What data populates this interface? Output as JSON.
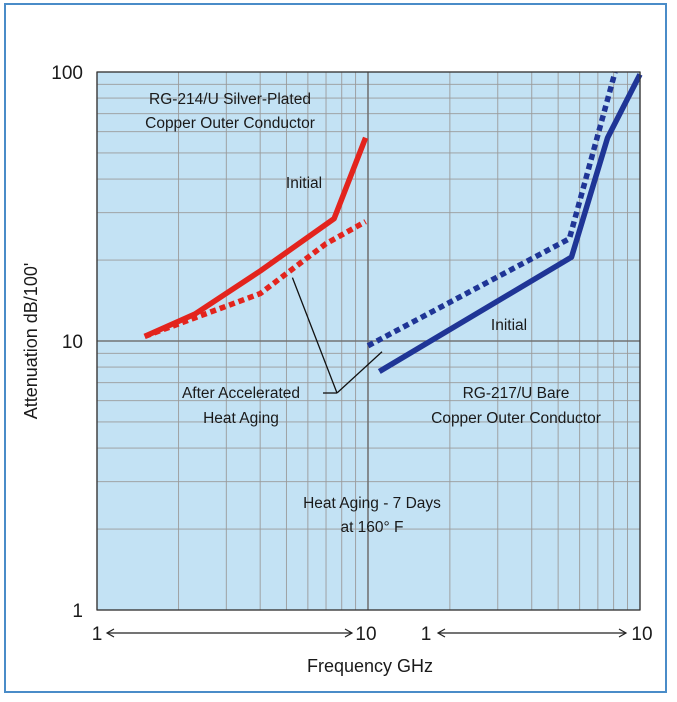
{
  "chart_data": {
    "type": "line",
    "xlabel": "Frequency GHz",
    "ylabel": "Attenuation dB/100'",
    "y_scale": "log",
    "x_scale": "log",
    "ylim": [
      1,
      100
    ],
    "y_ticks": [
      {
        "value": 1,
        "label": "1"
      },
      {
        "value": 10,
        "label": "10"
      },
      {
        "value": 100,
        "label": "100"
      }
    ],
    "grid": true,
    "panels": [
      {
        "xlim": [
          1,
          10
        ],
        "x_ticks": [
          {
            "value": 1,
            "label": "1"
          },
          {
            "value": 10,
            "label": "10"
          }
        ],
        "cable_label_lines": [
          "RG-214/U Silver-Plated",
          "Copper Outer Conductor"
        ],
        "series": [
          {
            "name": "Initial",
            "style": "solid",
            "color": "#e3241d",
            "points": [
              [
                1.5,
                10.4
              ],
              [
                2.3,
                12.6
              ],
              [
                4.0,
                18.2
              ],
              [
                7.5,
                28.5
              ],
              [
                9.8,
                57
              ]
            ]
          },
          {
            "name": "After Accelerated Heat Aging",
            "style": "dotted",
            "color": "#e3241d",
            "points": [
              [
                1.5,
                10.4
              ],
              [
                2.3,
                12.2
              ],
              [
                4.0,
                15.0
              ],
              [
                5.0,
                17.8
              ],
              [
                7.0,
                23.0
              ],
              [
                9.8,
                27.8
              ]
            ]
          }
        ]
      },
      {
        "xlim": [
          1,
          10
        ],
        "x_ticks": [
          {
            "value": 1,
            "label": "1"
          },
          {
            "value": 10,
            "label": "10"
          }
        ],
        "cable_label_lines": [
          "RG-217/U Bare",
          "Copper Outer Conductor"
        ],
        "series": [
          {
            "name": "Initial",
            "style": "solid",
            "color": "#1f3596",
            "points": [
              [
                1.1,
                7.7
              ],
              [
                5.6,
                20.5
              ],
              [
                7.6,
                57
              ],
              [
                10.0,
                98
              ]
            ]
          },
          {
            "name": "After Accelerated Heat Aging",
            "style": "dotted",
            "color": "#1f3596",
            "points": [
              [
                1.0,
                9.6
              ],
              [
                5.5,
                24.0
              ],
              [
                8.1,
                100
              ]
            ]
          }
        ]
      }
    ],
    "annotations": {
      "initial_left": "Initial",
      "initial_right": "Initial",
      "heat_aged_lines": [
        "After Accelerated",
        "Heat Aging"
      ],
      "conditions_lines": [
        "Heat Aging - 7 Days",
        "at 160° F"
      ]
    }
  },
  "colors": {
    "frame": "#4a8cc8",
    "plot_background": "#c3e2f4",
    "grid_major": "#6f6f6f",
    "grid_minor": "#9a9a9a"
  }
}
